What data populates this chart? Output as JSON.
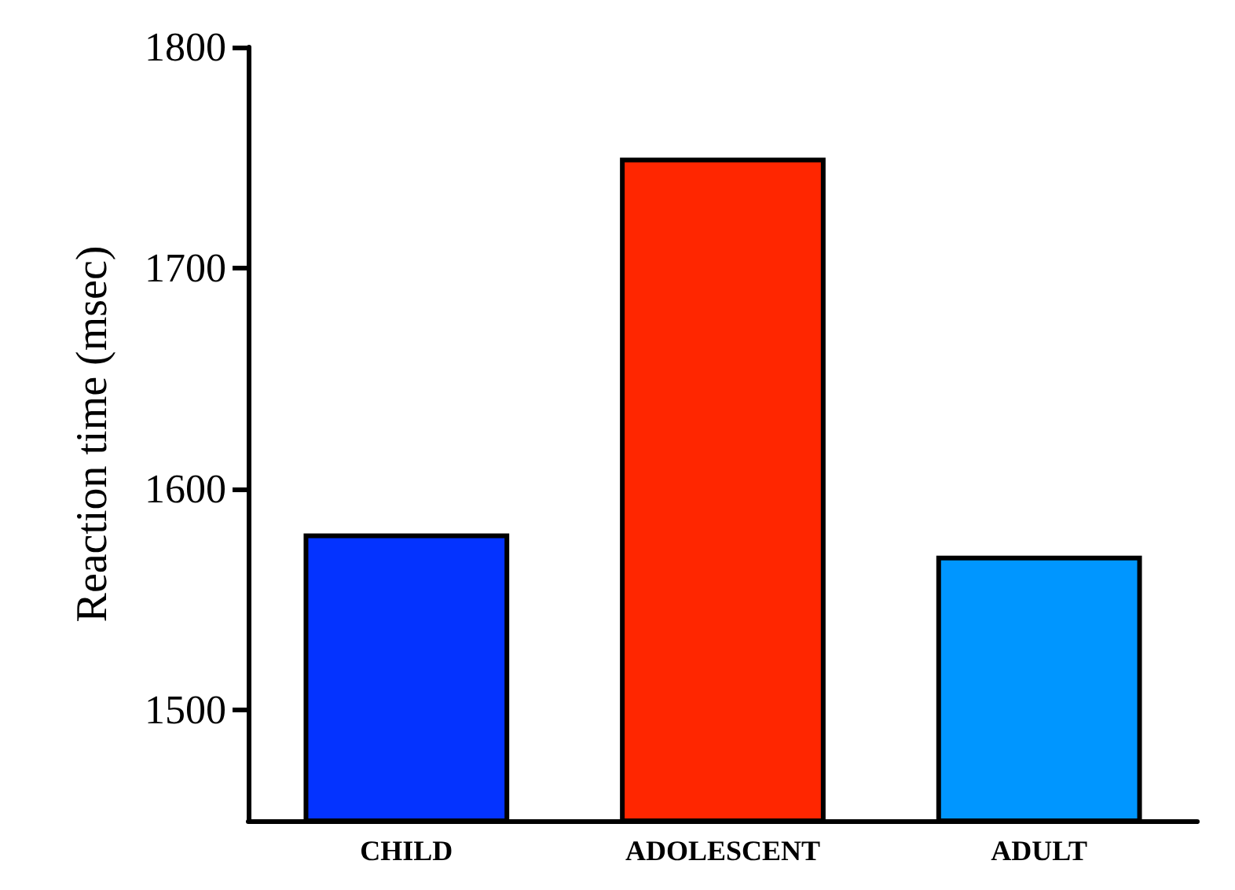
{
  "chart_data": {
    "type": "bar",
    "ylabel": "Reaction time (msec)",
    "categories": [
      "CHILD",
      "ADOLESCENT",
      "ADULT"
    ],
    "values": [
      1580,
      1750,
      1570
    ],
    "colors": [
      "#0433ff",
      "#ff2600",
      "#0096ff"
    ],
    "ylim": [
      1450,
      1800
    ],
    "yticks": [
      1500,
      1600,
      1700,
      1800
    ],
    "grid": false
  }
}
